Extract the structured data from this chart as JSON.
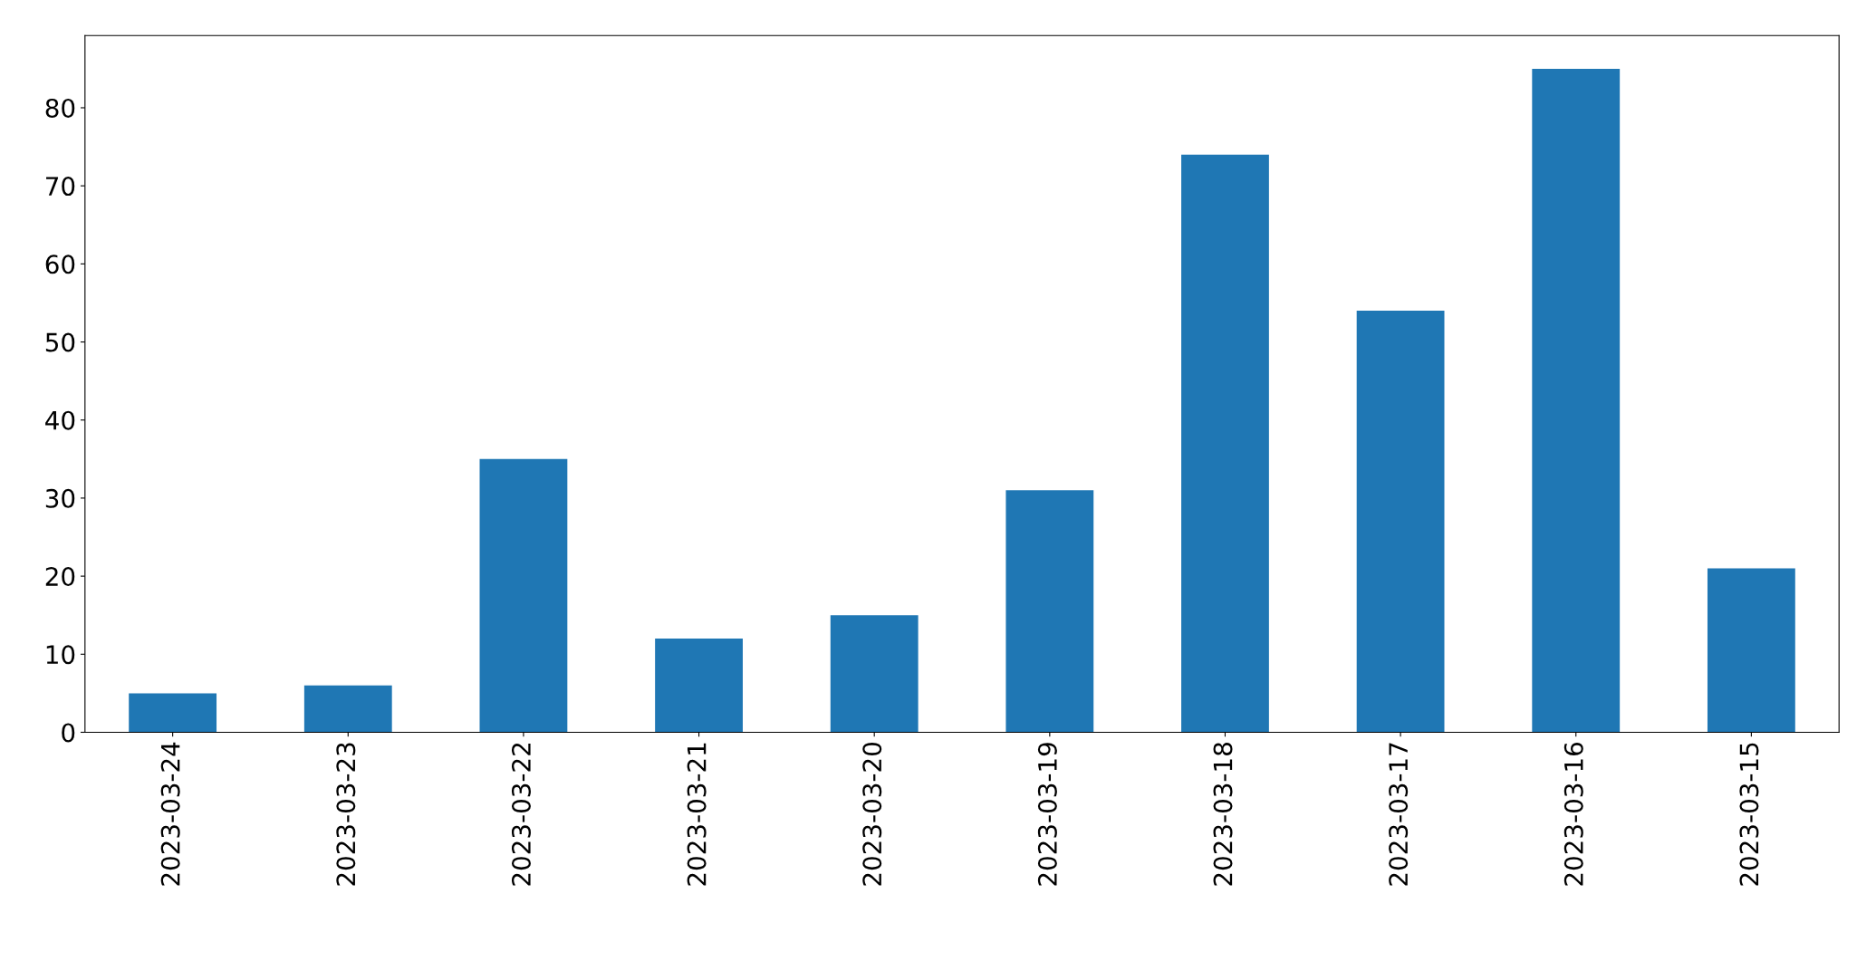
{
  "chart_data": {
    "type": "bar",
    "categories": [
      "2023-03-24",
      "2023-03-23",
      "2023-03-22",
      "2023-03-21",
      "2023-03-20",
      "2023-03-19",
      "2023-03-18",
      "2023-03-17",
      "2023-03-16",
      "2023-03-15"
    ],
    "values": [
      5,
      6,
      35,
      12,
      15,
      31,
      74,
      54,
      85,
      21
    ],
    "color": "#1f77b4",
    "ylim": [
      0,
      89.25
    ],
    "yticks": [
      0,
      10,
      20,
      30,
      40,
      50,
      60,
      70,
      80
    ],
    "grid": false,
    "legend": false
  }
}
